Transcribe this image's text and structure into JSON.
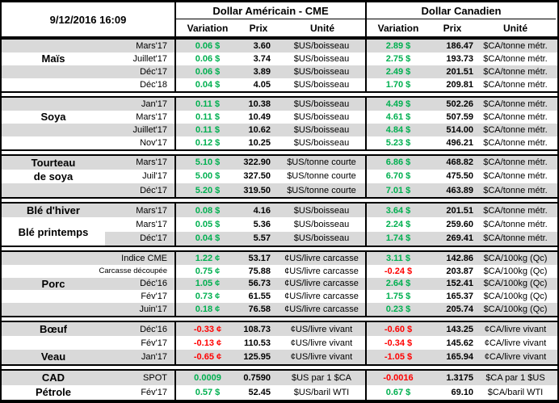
{
  "meta": {
    "timestamp": "9/12/2016 16:09"
  },
  "header": {
    "usd_title": "Dollar Américain - CME",
    "cad_title": "Dollar Canadien",
    "col_variation": "Variation",
    "col_prix": "Prix",
    "col_unite": "Unité"
  },
  "colors": {
    "positive": "#00B050",
    "negative": "#FF0000",
    "band": "#D9D9D9",
    "border": "#000000"
  },
  "groups": [
    {
      "name": "mais",
      "rows": [
        {
          "label": "",
          "month": "Mars'17",
          "usd_var": "0.06 $",
          "usd_prix": "3.60",
          "usd_unit": "$US/boisseau",
          "cad_var": "2.89 $",
          "cad_prix": "186.47",
          "cad_unit": "$CA/tonne métr."
        },
        {
          "label": "Maïs",
          "month": "Juillet'17",
          "usd_var": "0.06 $",
          "usd_prix": "3.74",
          "usd_unit": "$US/boisseau",
          "cad_var": "2.75 $",
          "cad_prix": "193.73",
          "cad_unit": "$CA/tonne métr."
        },
        {
          "label": "",
          "month": "Déc'17",
          "usd_var": "0.06 $",
          "usd_prix": "3.89",
          "usd_unit": "$US/boisseau",
          "cad_var": "2.49 $",
          "cad_prix": "201.51",
          "cad_unit": "$CA/tonne métr."
        },
        {
          "label": "",
          "month": "Déc'18",
          "usd_var": "0.04 $",
          "usd_prix": "4.05",
          "usd_unit": "$US/boisseau",
          "cad_var": "1.70 $",
          "cad_prix": "209.81",
          "cad_unit": "$CA/tonne métr."
        }
      ]
    },
    {
      "name": "soya",
      "rows": [
        {
          "label": "",
          "month": "Jan'17",
          "usd_var": "0.11 $",
          "usd_prix": "10.38",
          "usd_unit": "$US/boisseau",
          "cad_var": "4.49 $",
          "cad_prix": "502.26",
          "cad_unit": "$CA/tonne métr."
        },
        {
          "label": "Soya",
          "month": "Mars'17",
          "usd_var": "0.11 $",
          "usd_prix": "10.49",
          "usd_unit": "$US/boisseau",
          "cad_var": "4.61 $",
          "cad_prix": "507.59",
          "cad_unit": "$CA/tonne métr."
        },
        {
          "label": "",
          "month": "Juillet'17",
          "usd_var": "0.11 $",
          "usd_prix": "10.62",
          "usd_unit": "$US/boisseau",
          "cad_var": "4.84 $",
          "cad_prix": "514.00",
          "cad_unit": "$CA/tonne métr."
        },
        {
          "label": "",
          "month": "Nov'17",
          "usd_var": "0.12 $",
          "usd_prix": "10.25",
          "usd_unit": "$US/boisseau",
          "cad_var": "5.23 $",
          "cad_prix": "496.21",
          "cad_unit": "$CA/tonne métr."
        }
      ]
    },
    {
      "name": "tourteau-de-soya",
      "rows": [
        {
          "label": "Tourteau",
          "month": "Mars'17",
          "usd_var": "5.10 $",
          "usd_prix": "322.90",
          "usd_unit": "$US/tonne courte",
          "cad_var": "6.86 $",
          "cad_prix": "468.82",
          "cad_unit": "$CA/tonne métr."
        },
        {
          "label": "de soya",
          "month": "Juil'17",
          "usd_var": "5.00 $",
          "usd_prix": "327.50",
          "usd_unit": "$US/tonne courte",
          "cad_var": "6.70 $",
          "cad_prix": "475.50",
          "cad_unit": "$CA/tonne métr."
        },
        {
          "label": "",
          "month": "Déc'17",
          "usd_var": "5.20 $",
          "usd_prix": "319.50",
          "usd_unit": "$US/tonne courte",
          "cad_var": "7.01 $",
          "cad_prix": "463.89",
          "cad_unit": "$CA/tonne métr."
        }
      ]
    },
    {
      "name": "ble",
      "rows": [
        {
          "label": "Blé d'hiver",
          "month": "Mars'17",
          "usd_var": "0.08 $",
          "usd_prix": "4.16",
          "usd_unit": "$US/boisseau",
          "cad_var": "3.64 $",
          "cad_prix": "201.51",
          "cad_unit": "$CA/tonne métr."
        },
        {
          "label": "Blé printemps",
          "label_shift": true,
          "month": "Mars'17",
          "usd_var": "0.05 $",
          "usd_prix": "5.36",
          "usd_unit": "$US/boisseau",
          "cad_var": "2.24 $",
          "cad_prix": "259.60",
          "cad_unit": "$CA/tonne métr."
        },
        {
          "label": "",
          "label_plain": true,
          "month": "Déc'17",
          "usd_var": "0.04 $",
          "usd_prix": "5.57",
          "usd_unit": "$US/boisseau",
          "cad_var": "1.74 $",
          "cad_prix": "269.41",
          "cad_unit": "$CA/tonne métr."
        }
      ]
    },
    {
      "name": "porc",
      "rows": [
        {
          "label": "",
          "month": "Indice CME",
          "usd_var": "1.22 ¢",
          "usd_prix": "53.17",
          "usd_unit": "¢US/livre carcasse",
          "cad_var": "3.11 $",
          "cad_prix": "142.86",
          "cad_unit": "$CA/100kg (Qc)"
        },
        {
          "label": "",
          "month": "Carcasse découpée",
          "usd_var": "0.75 ¢",
          "usd_prix": "75.88",
          "usd_unit": "¢US/livre carcasse",
          "cad_var": "-0.24 $",
          "cad_prix": "203.87",
          "cad_unit": "$CA/100kg (Qc)"
        },
        {
          "label": "Porc",
          "month": "Déc'16",
          "usd_var": "1.05 ¢",
          "usd_prix": "56.73",
          "usd_unit": "¢US/livre carcasse",
          "cad_var": "2.64 $",
          "cad_prix": "152.41",
          "cad_unit": "$CA/100kg (Qc)"
        },
        {
          "label": "",
          "month": "Fév'17",
          "usd_var": "0.73 ¢",
          "usd_prix": "61.55",
          "usd_unit": "¢US/livre carcasse",
          "cad_var": "1.75 $",
          "cad_prix": "165.37",
          "cad_unit": "$CA/100kg (Qc)"
        },
        {
          "label": "",
          "month": "Juin'17",
          "usd_var": "0.18 ¢",
          "usd_prix": "76.58",
          "usd_unit": "¢US/livre carcasse",
          "cad_var": "0.23 $",
          "cad_prix": "205.74",
          "cad_unit": "$CA/100kg (Qc)"
        }
      ]
    },
    {
      "name": "boeuf-veau",
      "rows": [
        {
          "label": "Bœuf",
          "month": "Déc'16",
          "usd_var": "-0.33 ¢",
          "usd_prix": "108.73",
          "usd_unit": "¢US/livre vivant",
          "cad_var": "-0.60 $",
          "cad_prix": "143.25",
          "cad_unit": "¢CA/livre vivant"
        },
        {
          "label": "",
          "month": "Fév'17",
          "usd_var": "-0.13 ¢",
          "usd_prix": "110.53",
          "usd_unit": "¢US/livre vivant",
          "cad_var": "-0.34 $",
          "cad_prix": "145.62",
          "cad_unit": "¢CA/livre vivant"
        },
        {
          "label": "Veau",
          "month": "Jan'17",
          "usd_var": "-0.65 ¢",
          "usd_prix": "125.95",
          "usd_unit": "¢US/livre vivant",
          "cad_var": "-1.05 $",
          "cad_prix": "165.94",
          "cad_unit": "¢CA/livre vivant"
        }
      ]
    },
    {
      "name": "cad-petrole",
      "rows": [
        {
          "label": "CAD",
          "month": "SPOT",
          "usd_var": "0.0009",
          "usd_prix": "0.7590",
          "usd_unit": "$US par 1 $CA",
          "cad_var": "-0.0016",
          "cad_prix": "1.3175",
          "cad_unit": "$CA par 1 $US"
        },
        {
          "label": "Pétrole",
          "month": "Fév'17",
          "usd_var": "0.57 $",
          "usd_prix": "52.45",
          "usd_unit": "$US/baril WTI",
          "cad_var": "0.67 $",
          "cad_prix": "69.10",
          "cad_unit": "$CA/baril WTI"
        }
      ]
    }
  ]
}
